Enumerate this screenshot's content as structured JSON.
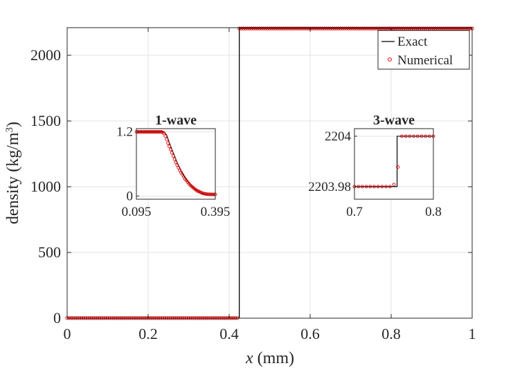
{
  "chart_data": {
    "type": "line",
    "xlabel_var": "x",
    "xlabel_unit": "(mm)",
    "ylabel_text": "density (kg/m",
    "ylabel_sup": "3",
    "ylabel_close": ")",
    "xlim": [
      0,
      1
    ],
    "ylim": [
      0,
      2210
    ],
    "xticks": [
      0,
      0.2,
      0.4,
      0.6,
      0.8,
      1
    ],
    "xtick_labels": [
      "0",
      "0.2",
      "0.4",
      "0.6",
      "0.8",
      "1"
    ],
    "yticks": [
      0,
      500,
      1000,
      1500,
      2000
    ],
    "ytick_labels": [
      "0",
      "500",
      "1000",
      "1500",
      "2000"
    ],
    "grid": true,
    "legend": {
      "position": "top-right",
      "entries": [
        "Exact",
        "Numerical"
      ]
    },
    "series": [
      {
        "name": "Exact",
        "color": "#000000",
        "style": "solid line",
        "points": [
          [
            0,
            1.2
          ],
          [
            0.425,
            1.2
          ],
          [
            0.425,
            2204
          ],
          [
            1,
            2204
          ]
        ]
      },
      {
        "name": "Numerical",
        "color": "#e00000",
        "style": "circle markers",
        "segments": [
          {
            "x_start": 0,
            "x_end": 0.42,
            "step": 0.005,
            "y": 1.2
          },
          {
            "x_start": 0.425,
            "x_end": 1,
            "step": 0.005,
            "y": 2204
          }
        ]
      }
    ],
    "insets": [
      {
        "title": "1-wave",
        "xlim": [
          0.095,
          0.395
        ],
        "ylim": [
          -0.06,
          1.26
        ],
        "xticks": [
          0.095,
          0.395
        ],
        "xtick_labels": [
          "0.095",
          "0.395"
        ],
        "yticks": [
          0,
          1.2
        ],
        "ytick_labels": [
          "0",
          "1.2"
        ],
        "exact": [
          [
            0.095,
            1.2
          ],
          [
            0.2,
            1.2
          ],
          [
            0.21,
            1.14
          ],
          [
            0.22,
            1.0
          ],
          [
            0.23,
            0.87
          ],
          [
            0.24,
            0.75
          ],
          [
            0.25,
            0.62
          ],
          [
            0.26,
            0.52
          ],
          [
            0.27,
            0.42
          ],
          [
            0.28,
            0.34
          ],
          [
            0.29,
            0.27
          ],
          [
            0.3,
            0.21
          ],
          [
            0.31,
            0.16
          ],
          [
            0.32,
            0.12
          ],
          [
            0.33,
            0.09
          ],
          [
            0.34,
            0.06
          ],
          [
            0.35,
            0.045
          ],
          [
            0.36,
            0.035
          ],
          [
            0.38,
            0.03
          ],
          [
            0.395,
            0.03
          ]
        ],
        "numerical": [
          [
            0.095,
            1.2
          ],
          [
            0.1,
            1.2
          ],
          [
            0.105,
            1.2
          ],
          [
            0.11,
            1.2
          ],
          [
            0.115,
            1.2
          ],
          [
            0.12,
            1.2
          ],
          [
            0.125,
            1.2
          ],
          [
            0.13,
            1.2
          ],
          [
            0.135,
            1.2
          ],
          [
            0.14,
            1.2
          ],
          [
            0.145,
            1.2
          ],
          [
            0.15,
            1.2
          ],
          [
            0.155,
            1.2
          ],
          [
            0.16,
            1.2
          ],
          [
            0.165,
            1.2
          ],
          [
            0.17,
            1.2
          ],
          [
            0.175,
            1.2
          ],
          [
            0.18,
            1.2
          ],
          [
            0.185,
            1.2
          ],
          [
            0.19,
            1.2
          ],
          [
            0.195,
            1.19
          ],
          [
            0.2,
            1.17
          ],
          [
            0.205,
            1.12
          ],
          [
            0.21,
            1.06
          ],
          [
            0.215,
            0.99
          ],
          [
            0.22,
            0.93
          ],
          [
            0.225,
            0.87
          ],
          [
            0.23,
            0.81
          ],
          [
            0.235,
            0.75
          ],
          [
            0.24,
            0.69
          ],
          [
            0.245,
            0.63
          ],
          [
            0.25,
            0.58
          ],
          [
            0.255,
            0.53
          ],
          [
            0.26,
            0.48
          ],
          [
            0.265,
            0.44
          ],
          [
            0.27,
            0.4
          ],
          [
            0.275,
            0.36
          ],
          [
            0.28,
            0.32
          ],
          [
            0.285,
            0.29
          ],
          [
            0.29,
            0.26
          ],
          [
            0.295,
            0.23
          ],
          [
            0.3,
            0.2
          ],
          [
            0.305,
            0.18
          ],
          [
            0.31,
            0.16
          ],
          [
            0.315,
            0.14
          ],
          [
            0.32,
            0.12
          ],
          [
            0.325,
            0.1
          ],
          [
            0.33,
            0.09
          ],
          [
            0.335,
            0.08
          ],
          [
            0.34,
            0.065
          ],
          [
            0.345,
            0.055
          ],
          [
            0.35,
            0.048
          ],
          [
            0.355,
            0.042
          ],
          [
            0.36,
            0.038
          ],
          [
            0.365,
            0.035
          ],
          [
            0.37,
            0.033
          ],
          [
            0.375,
            0.032
          ],
          [
            0.38,
            0.031
          ],
          [
            0.385,
            0.03
          ],
          [
            0.39,
            0.03
          ],
          [
            0.395,
            0.03
          ]
        ]
      },
      {
        "title": "3-wave",
        "xlim": [
          0.7,
          0.8
        ],
        "ylim": [
          2203.975,
          2204.003
        ],
        "xticks": [
          0.7,
          0.8
        ],
        "xtick_labels": [
          "0.7",
          "0.8"
        ],
        "yticks": [
          2203.98,
          2204
        ],
        "ytick_labels": [
          "2203.98",
          "2204"
        ],
        "exact": [
          [
            0.7,
            2203.98
          ],
          [
            0.754,
            2203.98
          ],
          [
            0.754,
            2204
          ],
          [
            0.8,
            2204
          ]
        ],
        "numerical": [
          [
            0.7,
            2203.98
          ],
          [
            0.705,
            2203.98
          ],
          [
            0.71,
            2203.98
          ],
          [
            0.715,
            2203.98
          ],
          [
            0.72,
            2203.98
          ],
          [
            0.725,
            2203.98
          ],
          [
            0.73,
            2203.98
          ],
          [
            0.735,
            2203.98
          ],
          [
            0.74,
            2203.98
          ],
          [
            0.745,
            2203.98
          ],
          [
            0.75,
            2203.9808
          ],
          [
            0.755,
            2203.9878
          ],
          [
            0.76,
            2204
          ],
          [
            0.765,
            2204
          ],
          [
            0.77,
            2204
          ],
          [
            0.775,
            2204
          ],
          [
            0.78,
            2204
          ],
          [
            0.785,
            2204
          ],
          [
            0.79,
            2204
          ],
          [
            0.795,
            2204
          ],
          [
            0.8,
            2204
          ]
        ]
      }
    ]
  }
}
